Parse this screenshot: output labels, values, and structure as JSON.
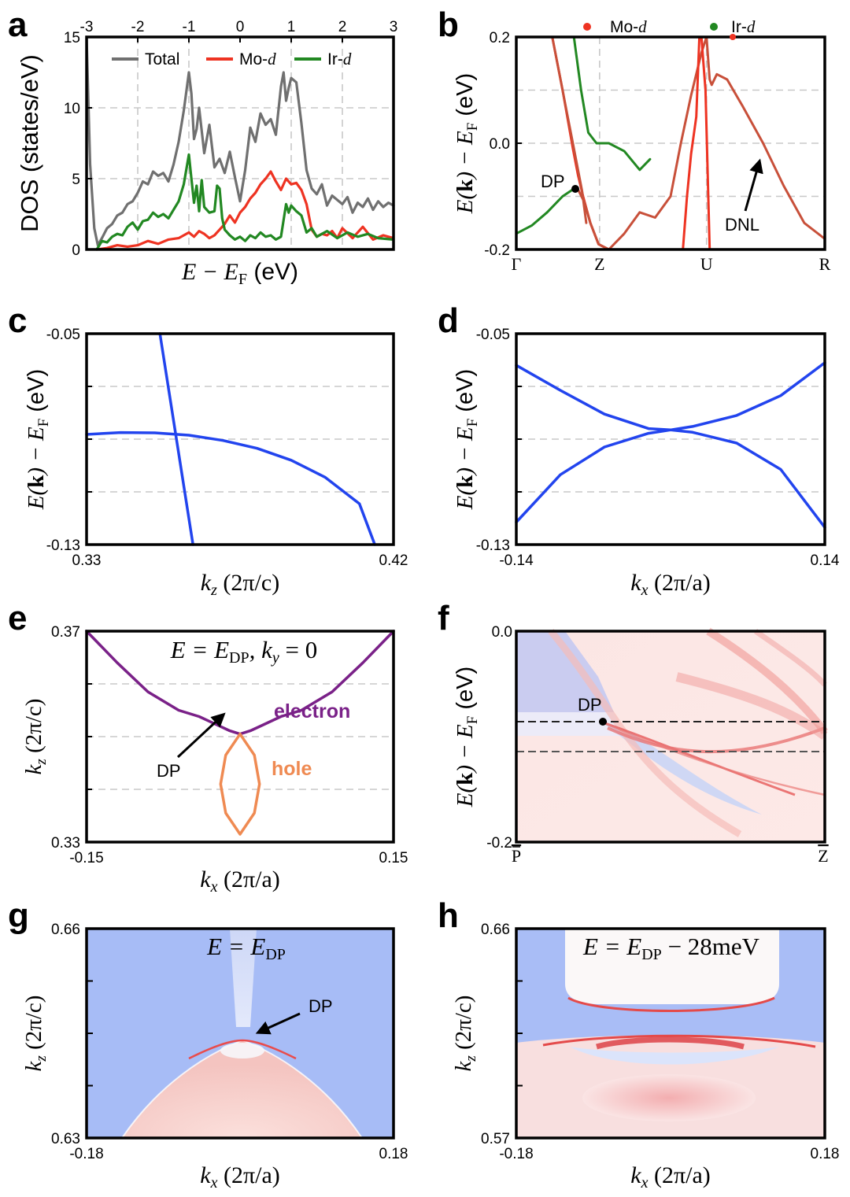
{
  "panel_labels": [
    "a",
    "b",
    "c",
    "d",
    "e",
    "f",
    "g",
    "h"
  ],
  "colors": {
    "total": "#707070",
    "mo": "#ee3322",
    "ir": "#228822",
    "band": "#2244ee",
    "electron": "#7a2188",
    "hole": "#ef8a52",
    "mixed": "#c8503a",
    "bulk_blue": "#a9bdf6",
    "surf_red": "#f6d2cf"
  },
  "chart_data": [
    {
      "panel": "a",
      "type": "line",
      "xlim": [
        -3,
        3
      ],
      "ylim": [
        0,
        15
      ],
      "xticks": [
        "-3",
        "-2",
        "-1",
        "0",
        "1",
        "2",
        "3"
      ],
      "yticks": [
        "0",
        "5",
        "10",
        "15"
      ],
      "ylabel": "DOS (states/eV)",
      "xlabel": {
        "main": "E − E",
        "sub": "F",
        "unit": " (eV)"
      },
      "legend": [
        {
          "label": "Total",
          "color_key": "total"
        },
        {
          "label": "Mo-",
          "italic": "d",
          "color_key": "mo"
        },
        {
          "label": "Ir-",
          "italic": "d",
          "color_key": "ir"
        }
      ],
      "series": [
        {
          "name": "Total",
          "color_key": "total",
          "x": [
            -3,
            -2.93,
            -2.85,
            -2.78,
            -2.7,
            -2.6,
            -2.5,
            -2.4,
            -2.3,
            -2.2,
            -2.1,
            -2,
            -1.9,
            -1.8,
            -1.7,
            -1.6,
            -1.5,
            -1.4,
            -1.3,
            -1.2,
            -1.1,
            -1,
            -0.95,
            -0.9,
            -0.85,
            -0.8,
            -0.7,
            -0.6,
            -0.5,
            -0.4,
            -0.3,
            -0.2,
            -0.1,
            0,
            0.1,
            0.2,
            0.3,
            0.4,
            0.5,
            0.6,
            0.7,
            0.8,
            0.85,
            0.9,
            0.95,
            1,
            1.1,
            1.2,
            1.3,
            1.4,
            1.5,
            1.6,
            1.7,
            1.8,
            1.9,
            2,
            2.1,
            2.2,
            2.3,
            2.4,
            2.5,
            2.6,
            2.7,
            2.8,
            2.9,
            3
          ],
          "y": [
            15,
            6,
            1.5,
            0.3,
            0.8,
            1.5,
            1.8,
            2.4,
            2.6,
            3.2,
            3.4,
            4,
            4.8,
            4.6,
            5.5,
            5.2,
            5.4,
            4.8,
            6,
            7.6,
            9.8,
            12.5,
            11,
            7.8,
            8.5,
            10,
            6.8,
            8.8,
            5.8,
            6.4,
            5.4,
            6.9,
            5.1,
            3.4,
            5.6,
            8.6,
            7.6,
            9.6,
            8.8,
            9.2,
            8.1,
            11.5,
            12.5,
            10.5,
            11.4,
            12.1,
            11.8,
            8.9,
            5.6,
            4.3,
            3.9,
            4.6,
            3.1,
            3.8,
            3.5,
            3.2,
            3.7,
            2.6,
            3.3,
            3,
            3.6,
            2.8,
            3.4,
            3,
            3.3,
            3.1
          ]
        },
        {
          "name": "Mo-d",
          "color_key": "mo",
          "x": [
            -2.8,
            -2.6,
            -2.4,
            -2.2,
            -2,
            -1.8,
            -1.6,
            -1.4,
            -1.2,
            -1,
            -0.9,
            -0.8,
            -0.7,
            -0.6,
            -0.5,
            -0.4,
            -0.3,
            -0.2,
            -0.1,
            0,
            0.1,
            0.2,
            0.3,
            0.4,
            0.5,
            0.6,
            0.7,
            0.8,
            0.9,
            1,
            1.1,
            1.2,
            1.3,
            1.4,
            1.5,
            1.6,
            1.7,
            1.8,
            1.9,
            2,
            2.2,
            2.4,
            2.6,
            2.8,
            3
          ],
          "y": [
            0,
            0.1,
            0.3,
            0.2,
            0.3,
            0.6,
            0.4,
            0.7,
            0.8,
            1.2,
            0.9,
            1.3,
            1.1,
            0.8,
            1.0,
            1.4,
            1.8,
            2.4,
            1.9,
            2.6,
            3.0,
            3.6,
            4.0,
            4.6,
            5.0,
            5.5,
            4.8,
            4.2,
            5.0,
            4.6,
            4.7,
            4.2,
            3.2,
            1.4,
            0.9,
            1.1,
            1.0,
            1.3,
            0.8,
            1.5,
            0.8,
            1.6,
            0.7,
            1.0,
            0.8
          ]
        },
        {
          "name": "Ir-d",
          "color_key": "ir",
          "x": [
            -2.8,
            -2.7,
            -2.6,
            -2.5,
            -2.4,
            -2.3,
            -2.2,
            -2.1,
            -2,
            -1.9,
            -1.8,
            -1.7,
            -1.6,
            -1.5,
            -1.4,
            -1.3,
            -1.2,
            -1.1,
            -1,
            -0.95,
            -0.9,
            -0.85,
            -0.8,
            -0.75,
            -0.7,
            -0.6,
            -0.5,
            -0.45,
            -0.4,
            -0.35,
            -0.3,
            -0.2,
            -0.1,
            0,
            0.1,
            0.2,
            0.3,
            0.4,
            0.5,
            0.6,
            0.7,
            0.8,
            0.9,
            0.95,
            1,
            1.1,
            1.2,
            1.3,
            1.4,
            1.5,
            1.7,
            1.9,
            2.1,
            2.3,
            2.5,
            2.7,
            3
          ],
          "y": [
            0,
            0.6,
            0.5,
            0.9,
            1.1,
            1.0,
            1.6,
            1.9,
            1.4,
            2.0,
            2.1,
            2.6,
            2.3,
            2.5,
            2.2,
            2.8,
            3.4,
            4.6,
            6.7,
            5.0,
            3.3,
            4.5,
            2.7,
            4.9,
            3.0,
            2.6,
            2.7,
            4.5,
            4.3,
            2.2,
            1.4,
            1.0,
            0.7,
            0.9,
            0.6,
            1.0,
            0.8,
            1.2,
            0.9,
            1.0,
            0.7,
            0.9,
            3.2,
            2.6,
            3.1,
            2.7,
            2.4,
            1.2,
            1.5,
            0.9,
            1.3,
            0.8,
            1.2,
            0.9,
            1.1,
            0.8,
            0.7
          ]
        }
      ]
    },
    {
      "panel": "b",
      "type": "line",
      "xlim": [
        0,
        3
      ],
      "ylim": [
        -0.2,
        0.2
      ],
      "xticks": [
        "Γ",
        "Z",
        "U",
        "R"
      ],
      "xtick_pos": [
        0,
        0.81,
        1.85,
        3
      ],
      "yticks": [
        "-0.2",
        "0.0",
        "0.2"
      ],
      "ylabel": {
        "pre": "E(",
        "bold": "k",
        "post": ") − E",
        "sub": "F",
        "unit": " (eV)"
      },
      "legend": [
        {
          "label": "Mo-",
          "italic": "d",
          "color_key": "mo"
        },
        {
          "label": "Ir-",
          "italic": "d",
          "color_key": "ir"
        }
      ],
      "annotations": [
        {
          "text": "DP",
          "x": 0.58,
          "y": -0.087
        },
        {
          "text": "DNL",
          "x": 2.3,
          "y": -0.03
        }
      ],
      "series": [
        {
          "name": "band1",
          "color_key": "mo",
          "x": [
            0.35,
            0.45,
            0.55,
            0.6,
            0.65,
            0.72,
            0.8,
            0.9
          ],
          "y": [
            0.2,
            0.1,
            -0.01,
            -0.06,
            -0.1,
            -0.15,
            -0.19,
            -0.2
          ]
        },
        {
          "name": "band2",
          "color_key": "mixed",
          "x": [
            0.35,
            0.42,
            0.5,
            0.55,
            0.6,
            0.64,
            0.68
          ],
          "y": [
            0.2,
            0.13,
            0.05,
            0.0,
            -0.05,
            -0.09,
            -0.15
          ]
        },
        {
          "name": "band3",
          "color_key": "ir",
          "x": [
            0,
            0.15,
            0.3,
            0.45,
            0.55,
            0.6
          ],
          "y": [
            -0.17,
            -0.155,
            -0.13,
            -0.1,
            -0.087,
            -0.087
          ]
        },
        {
          "name": "band4",
          "color_key": "mixed",
          "x": [
            0.6,
            0.66,
            0.72,
            0.8,
            0.9,
            1.05,
            1.2,
            1.35,
            1.5,
            1.6,
            1.7,
            1.8,
            1.85,
            1.88,
            1.9,
            1.95,
            2.05,
            2.2,
            2.4,
            2.6,
            2.8,
            3
          ],
          "y": [
            -0.087,
            -0.11,
            -0.15,
            -0.19,
            -0.2,
            -0.17,
            -0.13,
            -0.14,
            -0.1,
            0.0,
            0.09,
            0.17,
            0.2,
            0.12,
            0.11,
            0.13,
            0.12,
            0.07,
            0.0,
            -0.08,
            -0.15,
            -0.18
          ]
        },
        {
          "name": "band5",
          "color_key": "ir",
          "x": [
            0.56,
            0.63,
            0.7,
            0.78,
            0.9,
            1.05,
            1.2,
            1.3
          ],
          "y": [
            0.2,
            0.1,
            0.02,
            0.0,
            0.0,
            -0.015,
            -0.05,
            -0.03
          ]
        },
        {
          "name": "band6",
          "color_key": "mo",
          "x": [
            1.8,
            1.84,
            1.88
          ],
          "y": [
            0.2,
            0.1,
            -0.2
          ]
        },
        {
          "name": "band7",
          "color_key": "mo",
          "x": [
            1.62,
            1.66,
            1.7,
            1.75,
            1.78
          ],
          "y": [
            -0.2,
            -0.1,
            -0.02,
            0.05,
            0.2
          ]
        }
      ]
    },
    {
      "panel": "c",
      "type": "line",
      "xlim": [
        0.33,
        0.42
      ],
      "ylim": [
        -0.13,
        -0.05
      ],
      "xticks": [
        "0.33",
        "0.42"
      ],
      "yticks": [
        "-0.13",
        "-0.05"
      ],
      "xlabel": {
        "k": "k",
        "sub": "z",
        "unit": " (2π/c)"
      },
      "ylabel": {
        "pre": "E(",
        "bold": "k",
        "post": ") − E",
        "sub": "F",
        "unit": " (eV)"
      },
      "series": [
        {
          "name": "linear",
          "color_key": "band",
          "x": [
            0.3515,
            0.3612
          ],
          "y": [
            -0.05,
            -0.13
          ]
        },
        {
          "name": "parabolic",
          "color_key": "band",
          "x": [
            0.33,
            0.34,
            0.35,
            0.36,
            0.37,
            0.38,
            0.39,
            0.4,
            0.41,
            0.4145
          ],
          "y": [
            -0.0882,
            -0.0875,
            -0.0876,
            -0.0885,
            -0.0905,
            -0.0935,
            -0.098,
            -0.1045,
            -0.1145,
            -0.13
          ]
        }
      ]
    },
    {
      "panel": "d",
      "type": "line",
      "xlim": [
        -0.14,
        0.14
      ],
      "ylim": [
        -0.13,
        -0.05
      ],
      "xticks": [
        "-0.14",
        "0.14"
      ],
      "yticks": [
        "-0.13",
        "-0.05"
      ],
      "xlabel": {
        "k": "k",
        "sub": "x",
        "unit": " (2π/a)"
      },
      "ylabel": {
        "pre": "E(",
        "bold": "k",
        "post": ") − E",
        "sub": "F",
        "unit": " (eV)"
      },
      "series": [
        {
          "name": "upper",
          "color_key": "band",
          "x": [
            -0.14,
            -0.1,
            -0.06,
            -0.02,
            0,
            0.02,
            0.06,
            0.1,
            0.14
          ],
          "y": [
            -0.062,
            -0.0715,
            -0.0805,
            -0.086,
            -0.0865,
            -0.0852,
            -0.081,
            -0.0735,
            -0.061
          ]
        },
        {
          "name": "lower",
          "color_key": "band",
          "x": [
            -0.14,
            -0.1,
            -0.06,
            -0.02,
            0,
            0.02,
            0.06,
            0.1,
            0.14
          ],
          "y": [
            -0.1215,
            -0.1035,
            -0.093,
            -0.0878,
            -0.0865,
            -0.0874,
            -0.0915,
            -0.1015,
            -0.1235
          ]
        }
      ]
    },
    {
      "panel": "e",
      "type": "line",
      "xlim": [
        -0.15,
        0.15
      ],
      "ylim": [
        0.33,
        0.37
      ],
      "xticks": [
        "-0.15",
        "0.15"
      ],
      "yticks": [
        "0.33",
        "0.37"
      ],
      "xlabel": {
        "k": "k",
        "sub": "x",
        "unit": " (2π/a)"
      },
      "ylabel": {
        "k": "k",
        "sub": "z",
        "unit": " (2π/c)"
      },
      "title": {
        "pre": "E = E",
        "sub": "DP",
        "post": ", k",
        "sub2": "y",
        "tail": " = 0"
      },
      "annotations": [
        {
          "text": "electron",
          "color_key": "electron"
        },
        {
          "text": "hole",
          "color_key": "hole"
        },
        {
          "text": "DP"
        }
      ],
      "series": [
        {
          "name": "electron",
          "color_key": "electron",
          "x": [
            -0.15,
            -0.12,
            -0.09,
            -0.06,
            -0.04,
            -0.02,
            -0.01,
            0,
            0.01,
            0.02,
            0.04,
            0.06,
            0.09,
            0.12,
            0.15
          ],
          "y": [
            0.37,
            0.364,
            0.3585,
            0.355,
            0.3538,
            0.352,
            0.3511,
            0.3505,
            0.3511,
            0.352,
            0.3538,
            0.355,
            0.3585,
            0.364,
            0.37
          ]
        },
        {
          "name": "hole",
          "color_key": "hole",
          "x": [
            0,
            0.014,
            0.019,
            0.014,
            0,
            -0.014,
            -0.019,
            -0.014,
            0
          ],
          "y": [
            0.3505,
            0.3465,
            0.341,
            0.3355,
            0.3315,
            0.3355,
            0.341,
            0.3465,
            0.3505
          ]
        }
      ]
    },
    {
      "panel": "f",
      "type": "heatmap",
      "ylim": [
        -0.2,
        0.0
      ],
      "xticks": [
        "P",
        "Z"
      ],
      "yticks": [
        "-0.2",
        "0.0"
      ],
      "ylabel": {
        "pre": "E(",
        "bold": "k",
        "post": ") − E",
        "sub": "F",
        "unit": " (eV)"
      },
      "annotations": [
        {
          "text": "DP",
          "x": 0.29,
          "y": -0.087
        }
      ],
      "dashed_levels": [
        -0.087,
        -0.115
      ]
    },
    {
      "panel": "g",
      "type": "heatmap",
      "xlim": [
        -0.18,
        0.18
      ],
      "ylim": [
        0.63,
        0.66
      ],
      "xticks": [
        "-0.18",
        "0.18"
      ],
      "yticks": [
        "0.63",
        "0.66"
      ],
      "xlabel": {
        "k": "k",
        "sub": "x",
        "unit": " (2π/a)"
      },
      "ylabel": {
        "k": "k",
        "sub": "z",
        "unit": " (2π/c)"
      },
      "title": {
        "pre": "E = E",
        "sub": "DP"
      },
      "annotations": [
        {
          "text": "DP"
        }
      ]
    },
    {
      "panel": "h",
      "type": "heatmap",
      "xlim": [
        -0.18,
        0.18
      ],
      "ylim": [
        0.57,
        0.66
      ],
      "xticks": [
        "-0.18",
        "0.18"
      ],
      "yticks": [
        "0.57",
        "0.66"
      ],
      "xlabel": {
        "k": "k",
        "sub": "x",
        "unit": " (2π/a)"
      },
      "ylabel": {
        "k": "k",
        "sub": "z",
        "unit": " (2π/c)"
      },
      "title": {
        "pre": "E = E",
        "sub": "DP",
        "post": " − 28meV"
      }
    }
  ]
}
